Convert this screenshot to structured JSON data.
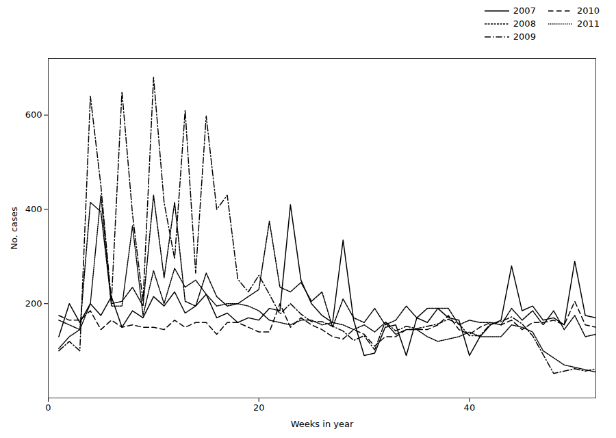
{
  "chart_data": {
    "type": "line",
    "xlabel": "Weeks in year",
    "ylabel": "No. cases",
    "x": [
      1,
      2,
      3,
      4,
      5,
      6,
      7,
      8,
      9,
      10,
      11,
      12,
      13,
      14,
      15,
      16,
      17,
      18,
      19,
      20,
      21,
      22,
      23,
      24,
      25,
      26,
      27,
      28,
      29,
      30,
      31,
      32,
      33,
      34,
      35,
      36,
      37,
      38,
      39,
      40,
      41,
      42,
      43,
      44,
      45,
      46,
      47,
      48,
      49,
      50,
      51,
      52
    ],
    "series": [
      {
        "name": "2007",
        "line_style": "solid",
        "values": [
          130,
          200,
          160,
          200,
          175,
          215,
          150,
          185,
          170,
          215,
          195,
          225,
          180,
          195,
          220,
          170,
          180,
          160,
          170,
          165,
          190,
          185,
          410,
          250,
          200,
          175,
          160,
          335,
          165,
          90,
          95,
          150,
          155,
          90,
          170,
          160,
          190,
          170,
          165,
          90,
          130,
          155,
          165,
          280,
          185,
          195,
          165,
          170,
          155,
          290,
          175,
          170
        ]
      },
      {
        "name": "2008",
        "line_style": "shortdash",
        "values": [
          165,
          155,
          145,
          415,
          395,
          200,
          205,
          235,
          195,
          430,
          255,
          415,
          205,
          195,
          265,
          215,
          195,
          200,
          215,
          230,
          375,
          235,
          225,
          245,
          205,
          225,
          150,
          210,
          170,
          160,
          190,
          155,
          165,
          195,
          170,
          190,
          190,
          190,
          155,
          165,
          160,
          160,
          155,
          190,
          165,
          185,
          155,
          185,
          145,
          175,
          130,
          135
        ]
      },
      {
        "name": "2009",
        "line_style": "dashdot",
        "values": [
          100,
          120,
          100,
          640,
          450,
          205,
          650,
          390,
          205,
          680,
          415,
          295,
          610,
          265,
          598,
          400,
          430,
          252,
          225,
          260,
          220,
          178,
          200,
          178,
          162,
          162,
          152,
          142,
          122,
          132,
          102,
          162,
          142,
          152,
          147,
          152,
          157,
          167,
          157,
          132,
          132,
          157,
          162,
          172,
          157,
          132,
          92,
          52,
          57,
          62,
          57,
          62
        ]
      },
      {
        "name": "2010",
        "line_style": "dashed",
        "values": [
          175,
          165,
          165,
          185,
          145,
          165,
          150,
          155,
          150,
          150,
          145,
          165,
          150,
          160,
          160,
          135,
          160,
          160,
          150,
          140,
          140,
          200,
          150,
          170,
          155,
          145,
          130,
          125,
          145,
          135,
          110,
          130,
          130,
          145,
          145,
          145,
          155,
          175,
          145,
          135,
          150,
          160,
          155,
          165,
          145,
          160,
          160,
          165,
          155,
          205,
          155,
          150
        ]
      },
      {
        "name": "2011",
        "line_style": "dotted",
        "values": [
          105,
          130,
          145,
          200,
          430,
          195,
          195,
          365,
          175,
          270,
          200,
          275,
          235,
          250,
          220,
          195,
          200,
          200,
          195,
          185,
          165,
          160,
          155,
          165,
          165,
          155,
          160,
          155,
          145,
          155,
          140,
          160,
          135,
          145,
          145,
          130,
          120,
          125,
          130,
          140,
          130,
          130,
          130,
          155,
          150,
          140,
          100,
          85,
          70,
          65,
          60,
          55
        ]
      }
    ],
    "color": "#000000",
    "xlim": [
      0,
      52
    ],
    "ylim": [
      0,
      720
    ],
    "xticks": [
      0,
      20,
      40
    ],
    "yticks": [
      200,
      400,
      600
    ],
    "grid": false,
    "legend": "upper right"
  }
}
